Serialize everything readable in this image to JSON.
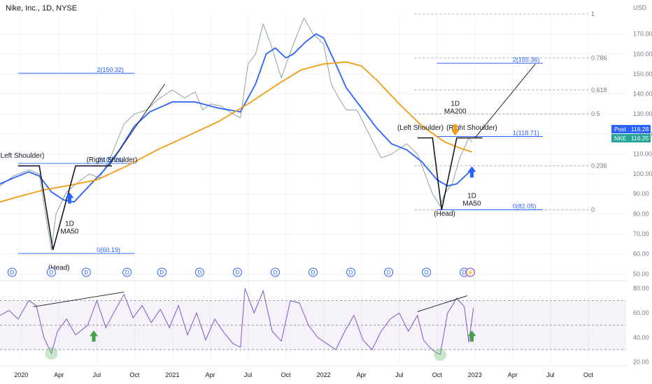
{
  "header": {
    "title": "Nike, Inc., 1D, NYSE"
  },
  "price_scale": {
    "currency": "USD",
    "ticks": [
      170,
      160,
      150,
      140,
      130,
      120,
      110,
      100,
      90,
      80,
      70,
      60,
      50
    ]
  },
  "rsi_scale": {
    "ticks": [
      80,
      60,
      40,
      20
    ]
  },
  "time_axis": {
    "labels": [
      {
        "t": 2020.0,
        "label": "2020"
      },
      {
        "t": 2020.25,
        "label": "Apr"
      },
      {
        "t": 2020.5,
        "label": "Jul"
      },
      {
        "t": 2020.75,
        "label": "Oct"
      },
      {
        "t": 2021.0,
        "label": "2021"
      },
      {
        "t": 2021.25,
        "label": "Apr"
      },
      {
        "t": 2021.5,
        "label": "Jul"
      },
      {
        "t": 2021.75,
        "label": "Oct"
      },
      {
        "t": 2022.0,
        "label": "2022"
      },
      {
        "t": 2022.25,
        "label": "Apr"
      },
      {
        "t": 2022.5,
        "label": "Jul"
      },
      {
        "t": 2022.75,
        "label": "Oct"
      },
      {
        "t": 2023.0,
        "label": "2023"
      },
      {
        "t": 2023.25,
        "label": "Apr"
      },
      {
        "t": 2023.5,
        "label": "Jul"
      },
      {
        "t": 2023.75,
        "label": "Oct"
      }
    ]
  },
  "badges": {
    "post": {
      "label": "Post",
      "value": "116.28",
      "color": "#2962ff"
    },
    "nke": {
      "label": "NKE",
      "value": "116.25",
      "color": "#26a69a"
    }
  },
  "chart_data": {
    "type": "line",
    "title": "Nike, Inc., 1D, NYSE",
    "x_range": [
      2019.86,
      2024.0
    ],
    "y_range": [
      48,
      180
    ],
    "rsi_range": [
      18,
      84
    ],
    "series": [
      {
        "name": "NKE",
        "color": "#8fa39c",
        "points": [
          [
            2019.86,
            94
          ],
          [
            2019.95,
            99
          ],
          [
            2020.05,
            102
          ],
          [
            2020.12,
            100
          ],
          [
            2020.15,
            85
          ],
          [
            2020.2,
            62
          ],
          [
            2020.23,
            80
          ],
          [
            2020.3,
            91
          ],
          [
            2020.38,
            96
          ],
          [
            2020.45,
            100
          ],
          [
            2020.52,
            98
          ],
          [
            2020.6,
            110
          ],
          [
            2020.68,
            125
          ],
          [
            2020.75,
            130
          ],
          [
            2020.83,
            132
          ],
          [
            2020.9,
            137
          ],
          [
            2021.0,
            142
          ],
          [
            2021.08,
            138
          ],
          [
            2021.15,
            141
          ],
          [
            2021.2,
            132
          ],
          [
            2021.25,
            135
          ],
          [
            2021.32,
            134
          ],
          [
            2021.4,
            130
          ],
          [
            2021.45,
            128
          ],
          [
            2021.5,
            155
          ],
          [
            2021.55,
            160
          ],
          [
            2021.6,
            175
          ],
          [
            2021.65,
            165
          ],
          [
            2021.72,
            148
          ],
          [
            2021.8,
            165
          ],
          [
            2021.87,
            178
          ],
          [
            2021.93,
            170
          ],
          [
            2022.0,
            165
          ],
          [
            2022.05,
            145
          ],
          [
            2022.1,
            138
          ],
          [
            2022.15,
            132
          ],
          [
            2022.22,
            132
          ],
          [
            2022.3,
            120
          ],
          [
            2022.38,
            108
          ],
          [
            2022.45,
            110
          ],
          [
            2022.55,
            115
          ],
          [
            2022.62,
            110
          ],
          [
            2022.68,
            98
          ],
          [
            2022.72,
            90
          ],
          [
            2022.77,
            84
          ],
          [
            2022.8,
            90
          ],
          [
            2022.85,
            95
          ],
          [
            2022.9,
            108
          ],
          [
            2022.96,
            118
          ],
          [
            2022.98,
            116
          ]
        ]
      },
      {
        "name": "1D MA50",
        "color": "#2962ff",
        "points": [
          [
            2019.86,
            95
          ],
          [
            2019.95,
            98
          ],
          [
            2020.05,
            101
          ],
          [
            2020.12,
            99
          ],
          [
            2020.2,
            91
          ],
          [
            2020.28,
            87
          ],
          [
            2020.35,
            86
          ],
          [
            2020.45,
            94
          ],
          [
            2020.55,
            102
          ],
          [
            2020.65,
            112
          ],
          [
            2020.75,
            124
          ],
          [
            2020.85,
            131
          ],
          [
            2021.0,
            136
          ],
          [
            2021.15,
            136
          ],
          [
            2021.3,
            133
          ],
          [
            2021.45,
            131
          ],
          [
            2021.55,
            145
          ],
          [
            2021.62,
            160
          ],
          [
            2021.68,
            163
          ],
          [
            2021.75,
            158
          ],
          [
            2021.8,
            160
          ],
          [
            2021.88,
            166
          ],
          [
            2021.95,
            170
          ],
          [
            2022.0,
            168
          ],
          [
            2022.08,
            155
          ],
          [
            2022.15,
            143
          ],
          [
            2022.25,
            133
          ],
          [
            2022.35,
            123
          ],
          [
            2022.45,
            115
          ],
          [
            2022.55,
            112
          ],
          [
            2022.65,
            106
          ],
          [
            2022.75,
            97
          ],
          [
            2022.82,
            94
          ],
          [
            2022.88,
            95
          ],
          [
            2022.95,
            100
          ],
          [
            2022.98,
            102
          ]
        ]
      },
      {
        "name": "1D MA200",
        "color": "#f39c12",
        "points": [
          [
            2019.86,
            86
          ],
          [
            2020.0,
            89
          ],
          [
            2020.15,
            92
          ],
          [
            2020.3,
            94
          ],
          [
            2020.5,
            97
          ],
          [
            2020.7,
            104
          ],
          [
            2020.9,
            112
          ],
          [
            2021.1,
            119
          ],
          [
            2021.3,
            126
          ],
          [
            2021.5,
            135
          ],
          [
            2021.7,
            145
          ],
          [
            2021.85,
            152
          ],
          [
            2022.0,
            155
          ],
          [
            2022.15,
            156
          ],
          [
            2022.25,
            154
          ],
          [
            2022.35,
            147
          ],
          [
            2022.5,
            135
          ],
          [
            2022.65,
            124
          ],
          [
            2022.8,
            116
          ],
          [
            2022.9,
            113
          ],
          [
            2022.98,
            111
          ]
        ]
      }
    ],
    "rsi": {
      "name": "RSI",
      "color": "#7e57c2",
      "band": [
        30,
        70
      ],
      "midline": 50,
      "points": [
        [
          2019.86,
          58
        ],
        [
          2019.92,
          62
        ],
        [
          2019.98,
          55
        ],
        [
          2020.05,
          70
        ],
        [
          2020.1,
          66
        ],
        [
          2020.15,
          40
        ],
        [
          2020.2,
          27
        ],
        [
          2020.24,
          45
        ],
        [
          2020.3,
          55
        ],
        [
          2020.36,
          42
        ],
        [
          2020.44,
          50
        ],
        [
          2020.5,
          70
        ],
        [
          2020.56,
          48
        ],
        [
          2020.62,
          62
        ],
        [
          2020.68,
          75
        ],
        [
          2020.74,
          56
        ],
        [
          2020.8,
          66
        ],
        [
          2020.86,
          52
        ],
        [
          2020.92,
          63
        ],
        [
          2020.98,
          48
        ],
        [
          2021.04,
          66
        ],
        [
          2021.1,
          42
        ],
        [
          2021.16,
          60
        ],
        [
          2021.22,
          38
        ],
        [
          2021.28,
          55
        ],
        [
          2021.34,
          44
        ],
        [
          2021.4,
          35
        ],
        [
          2021.45,
          32
        ],
        [
          2021.48,
          80
        ],
        [
          2021.54,
          60
        ],
        [
          2021.6,
          78
        ],
        [
          2021.66,
          45
        ],
        [
          2021.72,
          37
        ],
        [
          2021.78,
          70
        ],
        [
          2021.84,
          68
        ],
        [
          2021.9,
          50
        ],
        [
          2021.96,
          40
        ],
        [
          2022.02,
          35
        ],
        [
          2022.08,
          30
        ],
        [
          2022.14,
          45
        ],
        [
          2022.2,
          58
        ],
        [
          2022.26,
          38
        ],
        [
          2022.32,
          30
        ],
        [
          2022.38,
          45
        ],
        [
          2022.44,
          55
        ],
        [
          2022.5,
          60
        ],
        [
          2022.56,
          45
        ],
        [
          2022.62,
          58
        ],
        [
          2022.66,
          38
        ],
        [
          2022.7,
          32
        ],
        [
          2022.74,
          28
        ],
        [
          2022.77,
          26
        ],
        [
          2022.82,
          60
        ],
        [
          2022.88,
          72
        ],
        [
          2022.93,
          65
        ],
        [
          2022.96,
          36
        ],
        [
          2022.99,
          64
        ]
      ]
    },
    "fib_levels_left": [
      {
        "label": "2(150.32)",
        "value": 150.32
      },
      {
        "label": "1(105.26)",
        "value": 105.26
      },
      {
        "label": "0(60.19)",
        "value": 60.19
      }
    ],
    "fib_levels_right": [
      {
        "label": "2(155.36)",
        "value": 155.36
      },
      {
        "label": "1(118.71)",
        "value": 118.71
      },
      {
        "label": "0(82.05)",
        "value": 82.05
      }
    ],
    "fib_retracements": [
      {
        "label": "1",
        "value": 180
      },
      {
        "label": "0.786",
        "value": 158
      },
      {
        "label": "0.618",
        "value": 142
      },
      {
        "label": "0.5",
        "value": 130
      },
      {
        "label": "0.236",
        "value": 104
      },
      {
        "label": "0",
        "value": 82
      }
    ],
    "annotations": [
      {
        "label": "(Left Shoulder)",
        "t": 2020.0,
        "y": 108
      },
      {
        "label": "(Right Shoulder)",
        "t": 2020.6,
        "y": 106
      },
      {
        "label": "(Head)",
        "t": 2020.25,
        "y": 52
      },
      {
        "label": "1D\nMA50",
        "t": 2020.32,
        "y": 74
      },
      {
        "label": "(Left Shoulder)",
        "t": 2022.64,
        "y": 122
      },
      {
        "label": "(Right Shoulder)",
        "t": 2022.98,
        "y": 122
      },
      {
        "label": "(Head)",
        "t": 2022.8,
        "y": 79
      },
      {
        "label": "1D\nMA200",
        "t": 2022.87,
        "y": 134
      },
      {
        "label": "1D\nMA50",
        "t": 2022.98,
        "y": 88
      }
    ],
    "dividend_markers": [
      2019.94,
      2020.2,
      2020.43,
      2020.7,
      2020.93,
      2021.18,
      2021.43,
      2021.68,
      2021.93,
      2022.18,
      2022.43,
      2022.68,
      2022.93
    ],
    "earnings_marker": 2022.97
  }
}
